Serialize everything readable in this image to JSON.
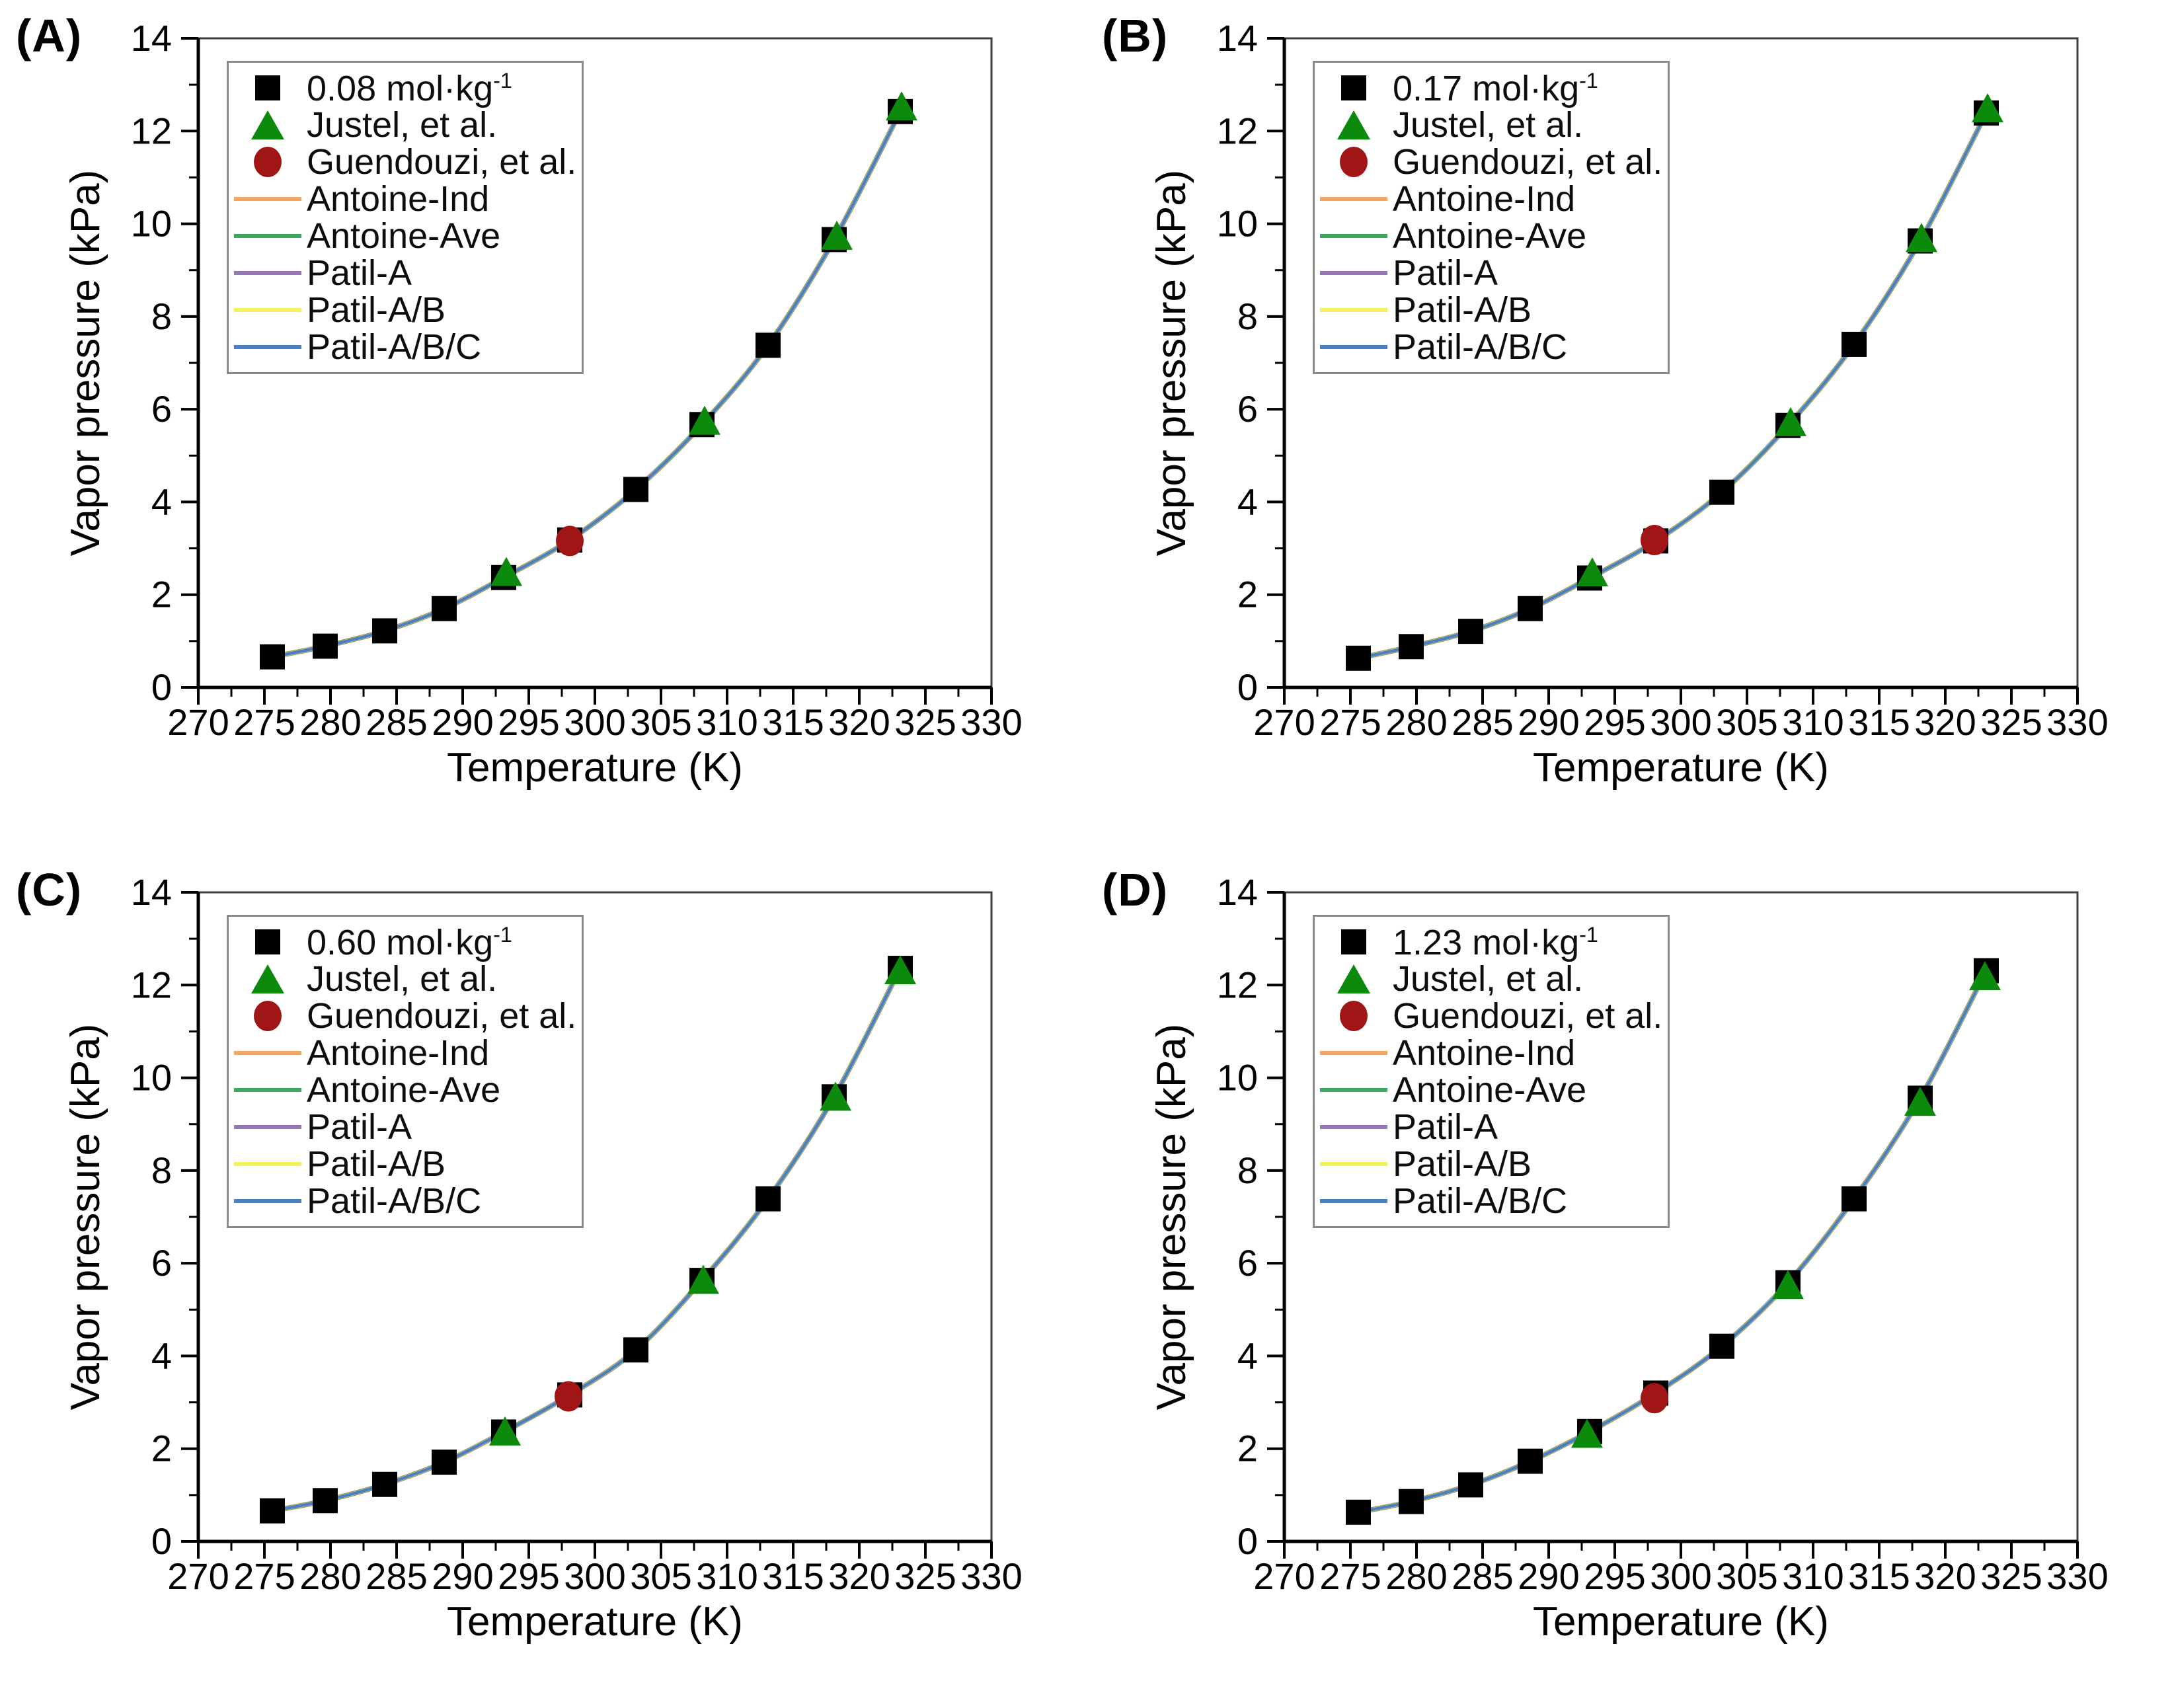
{
  "figure": {
    "xlabel": "Temperature (K)",
    "ylabel": "Vapor pressure (kPa)"
  },
  "panels": [
    {
      "letter": "(A)",
      "conc_base": "0.08 mol·kg",
      "conc_sup": "-1"
    },
    {
      "letter": "(B)",
      "conc_base": "0.17 mol·kg",
      "conc_sup": "-1"
    },
    {
      "letter": "(C)",
      "conc_base": "0.60 mol·kg",
      "conc_sup": "-1"
    },
    {
      "letter": "(D)",
      "conc_base": "1.23 mol·kg",
      "conc_sup": "-1"
    }
  ],
  "legend_labels": {
    "justel": "Justel, et al.",
    "guendouzi": "Guendouzi, et al.",
    "antoine_ind": "Antoine-Ind",
    "antoine_ave": "Antoine-Ave",
    "patil_a": "Patil-A",
    "patil_ab": "Patil-A/B",
    "patil_abc": "Patil-A/B/C"
  },
  "colors": {
    "square": "#000000",
    "triangle": "#0c8a0c",
    "circle": "#a01616",
    "antoine_ind": "#f2a661",
    "antoine_ave": "#3da95f",
    "patil_a": "#9678b4",
    "patil_ab": "#f2f25c",
    "patil_abc": "#4a80c2",
    "frame": "#3f3f3f",
    "spine": "#000000"
  },
  "chart_data": [
    {
      "type": "scatter",
      "title": "(A)",
      "xlabel": "Temperature (K)",
      "ylabel": "Vapor pressure (kPa)",
      "xlim": [
        270,
        330
      ],
      "ylim": [
        0,
        14
      ],
      "x_major_ticks": [
        270,
        275,
        280,
        285,
        290,
        295,
        300,
        305,
        310,
        315,
        320,
        325,
        330
      ],
      "x_minor_ticks": [
        272.5,
        277.5,
        282.5,
        287.5,
        292.5,
        297.5,
        302.5,
        307.5,
        312.5,
        317.5,
        322.5,
        327.5
      ],
      "y_major_ticks": [
        0,
        2,
        4,
        6,
        8,
        10,
        12,
        14
      ],
      "y_minor_ticks": [
        1,
        3,
        5,
        7,
        9,
        11,
        13
      ],
      "grid": false,
      "legend_position": "upper-left",
      "lines_note": "All five model lines overlap along the experimental curve",
      "series": [
        {
          "name": "0.08 mol·kg⁻¹",
          "type": "scatter",
          "marker": "square",
          "color": "#000000",
          "points": [
            [
              275.6,
              0.66
            ],
            [
              279.6,
              0.89
            ],
            [
              284.1,
              1.22
            ],
            [
              288.6,
              1.7
            ],
            [
              293.1,
              2.37
            ],
            [
              298.1,
              3.18
            ],
            [
              303.1,
              4.27
            ],
            [
              308.1,
              5.67
            ],
            [
              313.1,
              7.38
            ],
            [
              318.1,
              9.66
            ],
            [
              323.1,
              12.42
            ]
          ]
        },
        {
          "name": "Justel, et al.",
          "type": "scatter",
          "marker": "triangle",
          "color": "#0c8a0c",
          "points": [
            [
              293.3,
              2.46
            ],
            [
              308.3,
              5.72
            ],
            [
              318.3,
              9.71
            ],
            [
              323.2,
              12.5
            ]
          ]
        },
        {
          "name": "Guendouzi, et al.",
          "type": "scatter",
          "marker": "circle",
          "color": "#a01616",
          "points": [
            [
              298.1,
              3.16
            ]
          ]
        },
        {
          "name": "Antoine-Ind",
          "type": "line",
          "color": "#f2a661"
        },
        {
          "name": "Antoine-Ave",
          "type": "line",
          "color": "#3da95f"
        },
        {
          "name": "Patil-A",
          "type": "line",
          "color": "#9678b4"
        },
        {
          "name": "Patil-A/B",
          "type": "line",
          "color": "#f2f25c"
        },
        {
          "name": "Patil-A/B/C",
          "type": "line",
          "color": "#4a80c2"
        }
      ]
    },
    {
      "type": "scatter",
      "title": "(B)",
      "xlabel": "Temperature (K)",
      "ylabel": "Vapor pressure (kPa)",
      "xlim": [
        270,
        330
      ],
      "ylim": [
        0,
        14
      ],
      "x_major_ticks": [
        270,
        275,
        280,
        285,
        290,
        295,
        300,
        305,
        310,
        315,
        320,
        325,
        330
      ],
      "x_minor_ticks": [
        272.5,
        277.5,
        282.5,
        287.5,
        292.5,
        297.5,
        302.5,
        307.5,
        312.5,
        317.5,
        322.5,
        327.5
      ],
      "y_major_ticks": [
        0,
        2,
        4,
        6,
        8,
        10,
        12,
        14
      ],
      "y_minor_ticks": [
        1,
        3,
        5,
        7,
        9,
        11,
        13
      ],
      "grid": false,
      "legend_position": "upper-left",
      "lines_note": "All five model lines overlap along the experimental curve",
      "series": [
        {
          "name": "0.17 mol·kg⁻¹",
          "type": "scatter",
          "marker": "square",
          "color": "#000000",
          "points": [
            [
              275.6,
              0.63
            ],
            [
              279.6,
              0.88
            ],
            [
              284.1,
              1.21
            ],
            [
              288.6,
              1.7
            ],
            [
              293.1,
              2.36
            ],
            [
              298.1,
              3.16
            ],
            [
              303.1,
              4.21
            ],
            [
              308.1,
              5.65
            ],
            [
              313.1,
              7.4
            ],
            [
              318.1,
              9.63
            ],
            [
              323.1,
              12.39
            ]
          ]
        },
        {
          "name": "Justel, et al.",
          "type": "scatter",
          "marker": "triangle",
          "color": "#0c8a0c",
          "points": [
            [
              293.3,
              2.45
            ],
            [
              308.3,
              5.69
            ],
            [
              318.2,
              9.66
            ],
            [
              323.2,
              12.46
            ]
          ]
        },
        {
          "name": "Guendouzi, et al.",
          "type": "scatter",
          "marker": "circle",
          "color": "#a01616",
          "points": [
            [
              298.0,
              3.18
            ]
          ]
        },
        {
          "name": "Antoine-Ind",
          "type": "line",
          "color": "#f2a661"
        },
        {
          "name": "Antoine-Ave",
          "type": "line",
          "color": "#3da95f"
        },
        {
          "name": "Patil-A",
          "type": "line",
          "color": "#9678b4"
        },
        {
          "name": "Patil-A/B",
          "type": "line",
          "color": "#f2f25c"
        },
        {
          "name": "Patil-A/B/C",
          "type": "line",
          "color": "#4a80c2"
        }
      ]
    },
    {
      "type": "scatter",
      "title": "(C)",
      "xlabel": "Temperature (K)",
      "ylabel": "Vapor pressure (kPa)",
      "xlim": [
        270,
        330
      ],
      "ylim": [
        0,
        14
      ],
      "x_major_ticks": [
        270,
        275,
        280,
        285,
        290,
        295,
        300,
        305,
        310,
        315,
        320,
        325,
        330
      ],
      "x_minor_ticks": [
        272.5,
        277.5,
        282.5,
        287.5,
        292.5,
        297.5,
        302.5,
        307.5,
        312.5,
        317.5,
        322.5,
        327.5
      ],
      "y_major_ticks": [
        0,
        2,
        4,
        6,
        8,
        10,
        12,
        14
      ],
      "y_minor_ticks": [
        1,
        3,
        5,
        7,
        9,
        11,
        13
      ],
      "grid": false,
      "legend_position": "upper-left",
      "lines_note": "All five model lines overlap along the experimental curve",
      "series": [
        {
          "name": "0.60 mol·kg⁻¹",
          "type": "scatter",
          "marker": "square",
          "color": "#000000",
          "points": [
            [
              275.6,
              0.66
            ],
            [
              279.6,
              0.88
            ],
            [
              284.1,
              1.23
            ],
            [
              288.6,
              1.71
            ],
            [
              293.1,
              2.36
            ],
            [
              298.1,
              3.16
            ],
            [
              303.1,
              4.13
            ],
            [
              308.1,
              5.63
            ],
            [
              313.1,
              7.39
            ],
            [
              318.1,
              9.59
            ],
            [
              323.1,
              12.36
            ]
          ]
        },
        {
          "name": "Justel, et al.",
          "type": "scatter",
          "marker": "triangle",
          "color": "#0c8a0c",
          "points": [
            [
              293.2,
              2.34
            ],
            [
              308.2,
              5.61
            ],
            [
              318.2,
              9.56
            ],
            [
              323.1,
              12.29
            ]
          ]
        },
        {
          "name": "Guendouzi, et al.",
          "type": "scatter",
          "marker": "circle",
          "color": "#a01616",
          "points": [
            [
              298.0,
              3.13
            ]
          ]
        },
        {
          "name": "Antoine-Ind",
          "type": "line",
          "color": "#f2a661"
        },
        {
          "name": "Antoine-Ave",
          "type": "line",
          "color": "#3da95f"
        },
        {
          "name": "Patil-A",
          "type": "line",
          "color": "#9678b4"
        },
        {
          "name": "Patil-A/B",
          "type": "line",
          "color": "#f2f25c"
        },
        {
          "name": "Patil-A/B/C",
          "type": "line",
          "color": "#4a80c2"
        }
      ]
    },
    {
      "type": "scatter",
      "title": "(D)",
      "xlabel": "Temperature (K)",
      "ylabel": "Vapor pressure (kPa)",
      "xlim": [
        270,
        330
      ],
      "ylim": [
        0,
        14
      ],
      "x_major_ticks": [
        270,
        275,
        280,
        285,
        290,
        295,
        300,
        305,
        310,
        315,
        320,
        325,
        330
      ],
      "x_minor_ticks": [
        272.5,
        277.5,
        282.5,
        287.5,
        292.5,
        297.5,
        302.5,
        307.5,
        312.5,
        317.5,
        322.5,
        327.5
      ],
      "y_major_ticks": [
        0,
        2,
        4,
        6,
        8,
        10,
        12,
        14
      ],
      "y_minor_ticks": [
        1,
        3,
        5,
        7,
        9,
        11,
        13
      ],
      "grid": false,
      "legend_position": "upper-left",
      "lines_note": "All five model lines overlap along the experimental curve",
      "series": [
        {
          "name": "1.23 mol·kg⁻¹",
          "type": "scatter",
          "marker": "square",
          "color": "#000000",
          "points": [
            [
              275.6,
              0.63
            ],
            [
              279.6,
              0.86
            ],
            [
              284.1,
              1.22
            ],
            [
              288.6,
              1.73
            ],
            [
              293.1,
              2.37
            ],
            [
              298.1,
              3.2
            ],
            [
              303.1,
              4.21
            ],
            [
              308.1,
              5.58
            ],
            [
              313.1,
              7.39
            ],
            [
              318.1,
              9.56
            ],
            [
              323.1,
              12.31
            ]
          ]
        },
        {
          "name": "Justel, et al.",
          "type": "scatter",
          "marker": "triangle",
          "color": "#0c8a0c",
          "points": [
            [
              292.9,
              2.29
            ],
            [
              308.1,
              5.5
            ],
            [
              318.1,
              9.45
            ],
            [
              323.0,
              12.16
            ]
          ]
        },
        {
          "name": "Guendouzi, et al.",
          "type": "scatter",
          "marker": "circle",
          "color": "#a01616",
          "points": [
            [
              298.0,
              3.09
            ]
          ]
        },
        {
          "name": "Antoine-Ind",
          "type": "line",
          "color": "#f2a661"
        },
        {
          "name": "Antoine-Ave",
          "type": "line",
          "color": "#3da95f"
        },
        {
          "name": "Patil-A",
          "type": "line",
          "color": "#9678b4"
        },
        {
          "name": "Patil-A/B",
          "type": "line",
          "color": "#f2f25c"
        },
        {
          "name": "Patil-A/B/C",
          "type": "line",
          "color": "#4a80c2"
        }
      ]
    }
  ]
}
